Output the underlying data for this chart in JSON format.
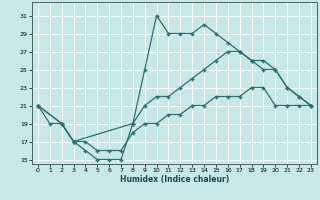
{
  "xlabel": "Humidex (Indice chaleur)",
  "bg_color": "#c8e8e8",
  "grid_color": "#ffffff",
  "line_color": "#2a7070",
  "xlim": [
    -0.5,
    23.5
  ],
  "ylim": [
    14.5,
    32.5
  ],
  "xticks": [
    0,
    1,
    2,
    3,
    4,
    5,
    6,
    7,
    8,
    9,
    10,
    11,
    12,
    13,
    14,
    15,
    16,
    17,
    18,
    19,
    20,
    21,
    22,
    23
  ],
  "yticks": [
    15,
    17,
    19,
    21,
    23,
    25,
    27,
    29,
    31
  ],
  "line1_x": [
    0,
    1,
    2,
    3,
    4,
    5,
    6,
    7,
    8,
    9,
    10,
    11,
    12,
    13,
    14,
    15,
    16,
    17,
    18,
    19,
    20,
    21,
    22,
    23
  ],
  "line1_y": [
    21,
    19,
    19,
    17,
    16,
    15,
    15,
    15,
    19,
    25,
    31,
    29,
    29,
    29,
    30,
    29,
    28,
    27,
    26,
    25,
    25,
    23,
    22,
    21
  ],
  "line2_x": [
    0,
    2,
    3,
    8,
    9,
    10,
    11,
    12,
    13,
    14,
    15,
    16,
    17,
    18,
    19,
    20,
    21,
    22,
    23
  ],
  "line2_y": [
    21,
    19,
    17,
    19,
    21,
    22,
    22,
    23,
    24,
    25,
    26,
    27,
    27,
    26,
    26,
    25,
    23,
    22,
    21
  ],
  "line3_x": [
    0,
    2,
    3,
    4,
    5,
    6,
    7,
    8,
    9,
    10,
    11,
    12,
    13,
    14,
    15,
    16,
    17,
    18,
    19,
    20,
    21,
    22,
    23
  ],
  "line3_y": [
    21,
    19,
    17,
    17,
    16,
    16,
    16,
    18,
    19,
    19,
    20,
    20,
    21,
    21,
    22,
    22,
    22,
    23,
    23,
    21,
    21,
    21,
    21
  ]
}
